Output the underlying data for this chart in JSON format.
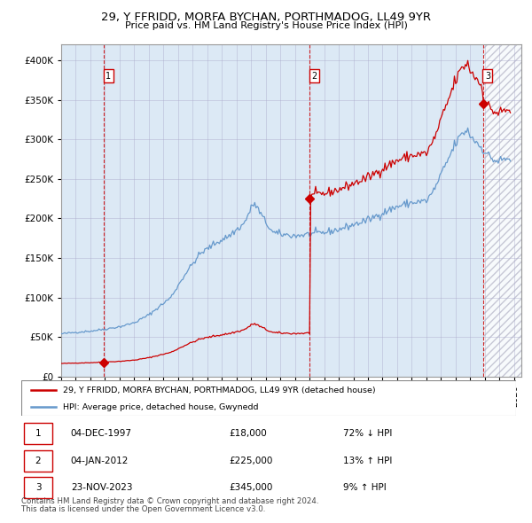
{
  "title": "29, Y FFRIDD, MORFA BYCHAN, PORTHMADOG, LL49 9YR",
  "subtitle": "Price paid vs. HM Land Registry's House Price Index (HPI)",
  "legend_entry1": "29, Y FFRIDD, MORFA BYCHAN, PORTHMADOG, LL49 9YR (detached house)",
  "legend_entry2": "HPI: Average price, detached house, Gwynedd",
  "footer1": "Contains HM Land Registry data © Crown copyright and database right 2024.",
  "footer2": "This data is licensed under the Open Government Licence v3.0.",
  "transactions": [
    {
      "num": 1,
      "date_str": "04-DEC-1997",
      "date_x": 1997.92,
      "price": 18000,
      "pct": "72% ↓ HPI"
    },
    {
      "num": 2,
      "date_str": "04-JAN-2012",
      "date_x": 2012.01,
      "price": 225000,
      "pct": "13% ↑ HPI"
    },
    {
      "num": 3,
      "date_str": "23-NOV-2023",
      "date_x": 2023.89,
      "price": 345000,
      "pct": "9% ↑ HPI"
    }
  ],
  "hpi_color": "#6699cc",
  "price_color": "#cc0000",
  "bg_color": "#dce9f5",
  "grid_color": "#aaaacc",
  "xlim": [
    1995.0,
    2026.5
  ],
  "ylim": [
    0,
    420000
  ],
  "yticks": [
    0,
    50000,
    100000,
    150000,
    200000,
    250000,
    300000,
    350000,
    400000
  ]
}
